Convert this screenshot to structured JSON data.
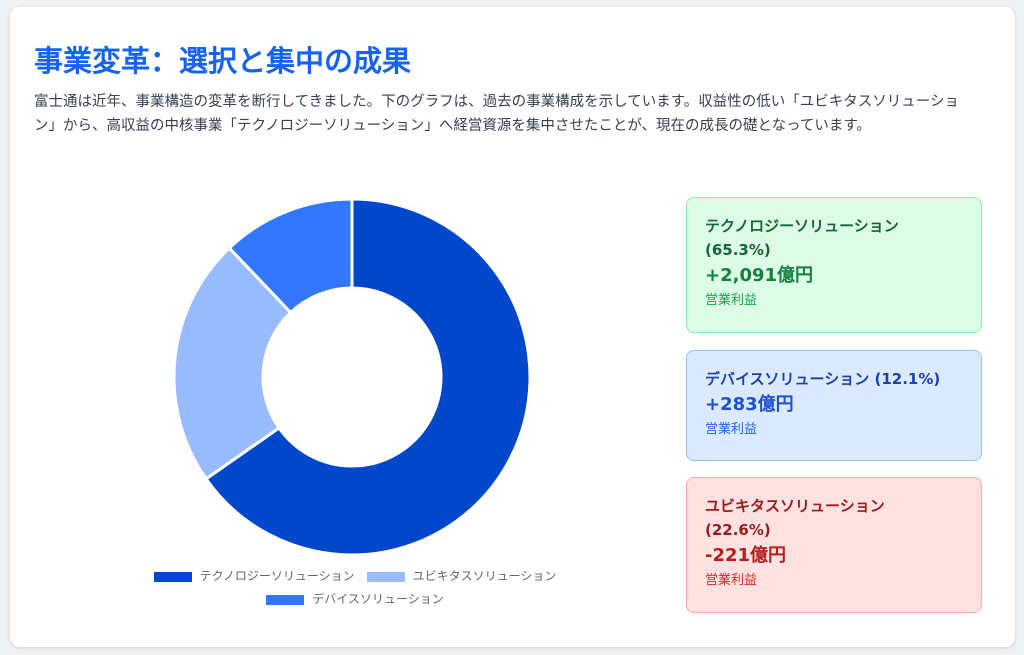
{
  "title": "事業変革：選択と集中の成果",
  "description": "富士通は近年、事業構造の変革を断行してきました。下のグラフは、過去の事業構成を示しています。収益性の低い「ユビキタスソリューション」から、高収益の中核事業「テクノロジーソリューション」へ経営資源を集中させたことが、現在の成長の礎となっています。",
  "chart_data": {
    "type": "pie",
    "variant": "doughnut",
    "categories": [
      "テクノロジーソリューション",
      "ユビキタスソリューション",
      "デバイスソリューション"
    ],
    "values": [
      65.3,
      22.6,
      12.1
    ],
    "colors": [
      "#0047cc",
      "#99bbff",
      "#3377ff"
    ],
    "legend_position": "bottom"
  },
  "cards": [
    {
      "name": "テクノロジーソリューション",
      "pct": "(65.3%)",
      "value": "+2,091億円",
      "label": "営業利益"
    },
    {
      "name": "デバイスソリューション (12.1%)",
      "value": "+283億円",
      "label": "営業利益"
    },
    {
      "name": "ユビキタスソリューション",
      "pct": "(22.6%)",
      "value": "-221億円",
      "label": "営業利益"
    }
  ]
}
